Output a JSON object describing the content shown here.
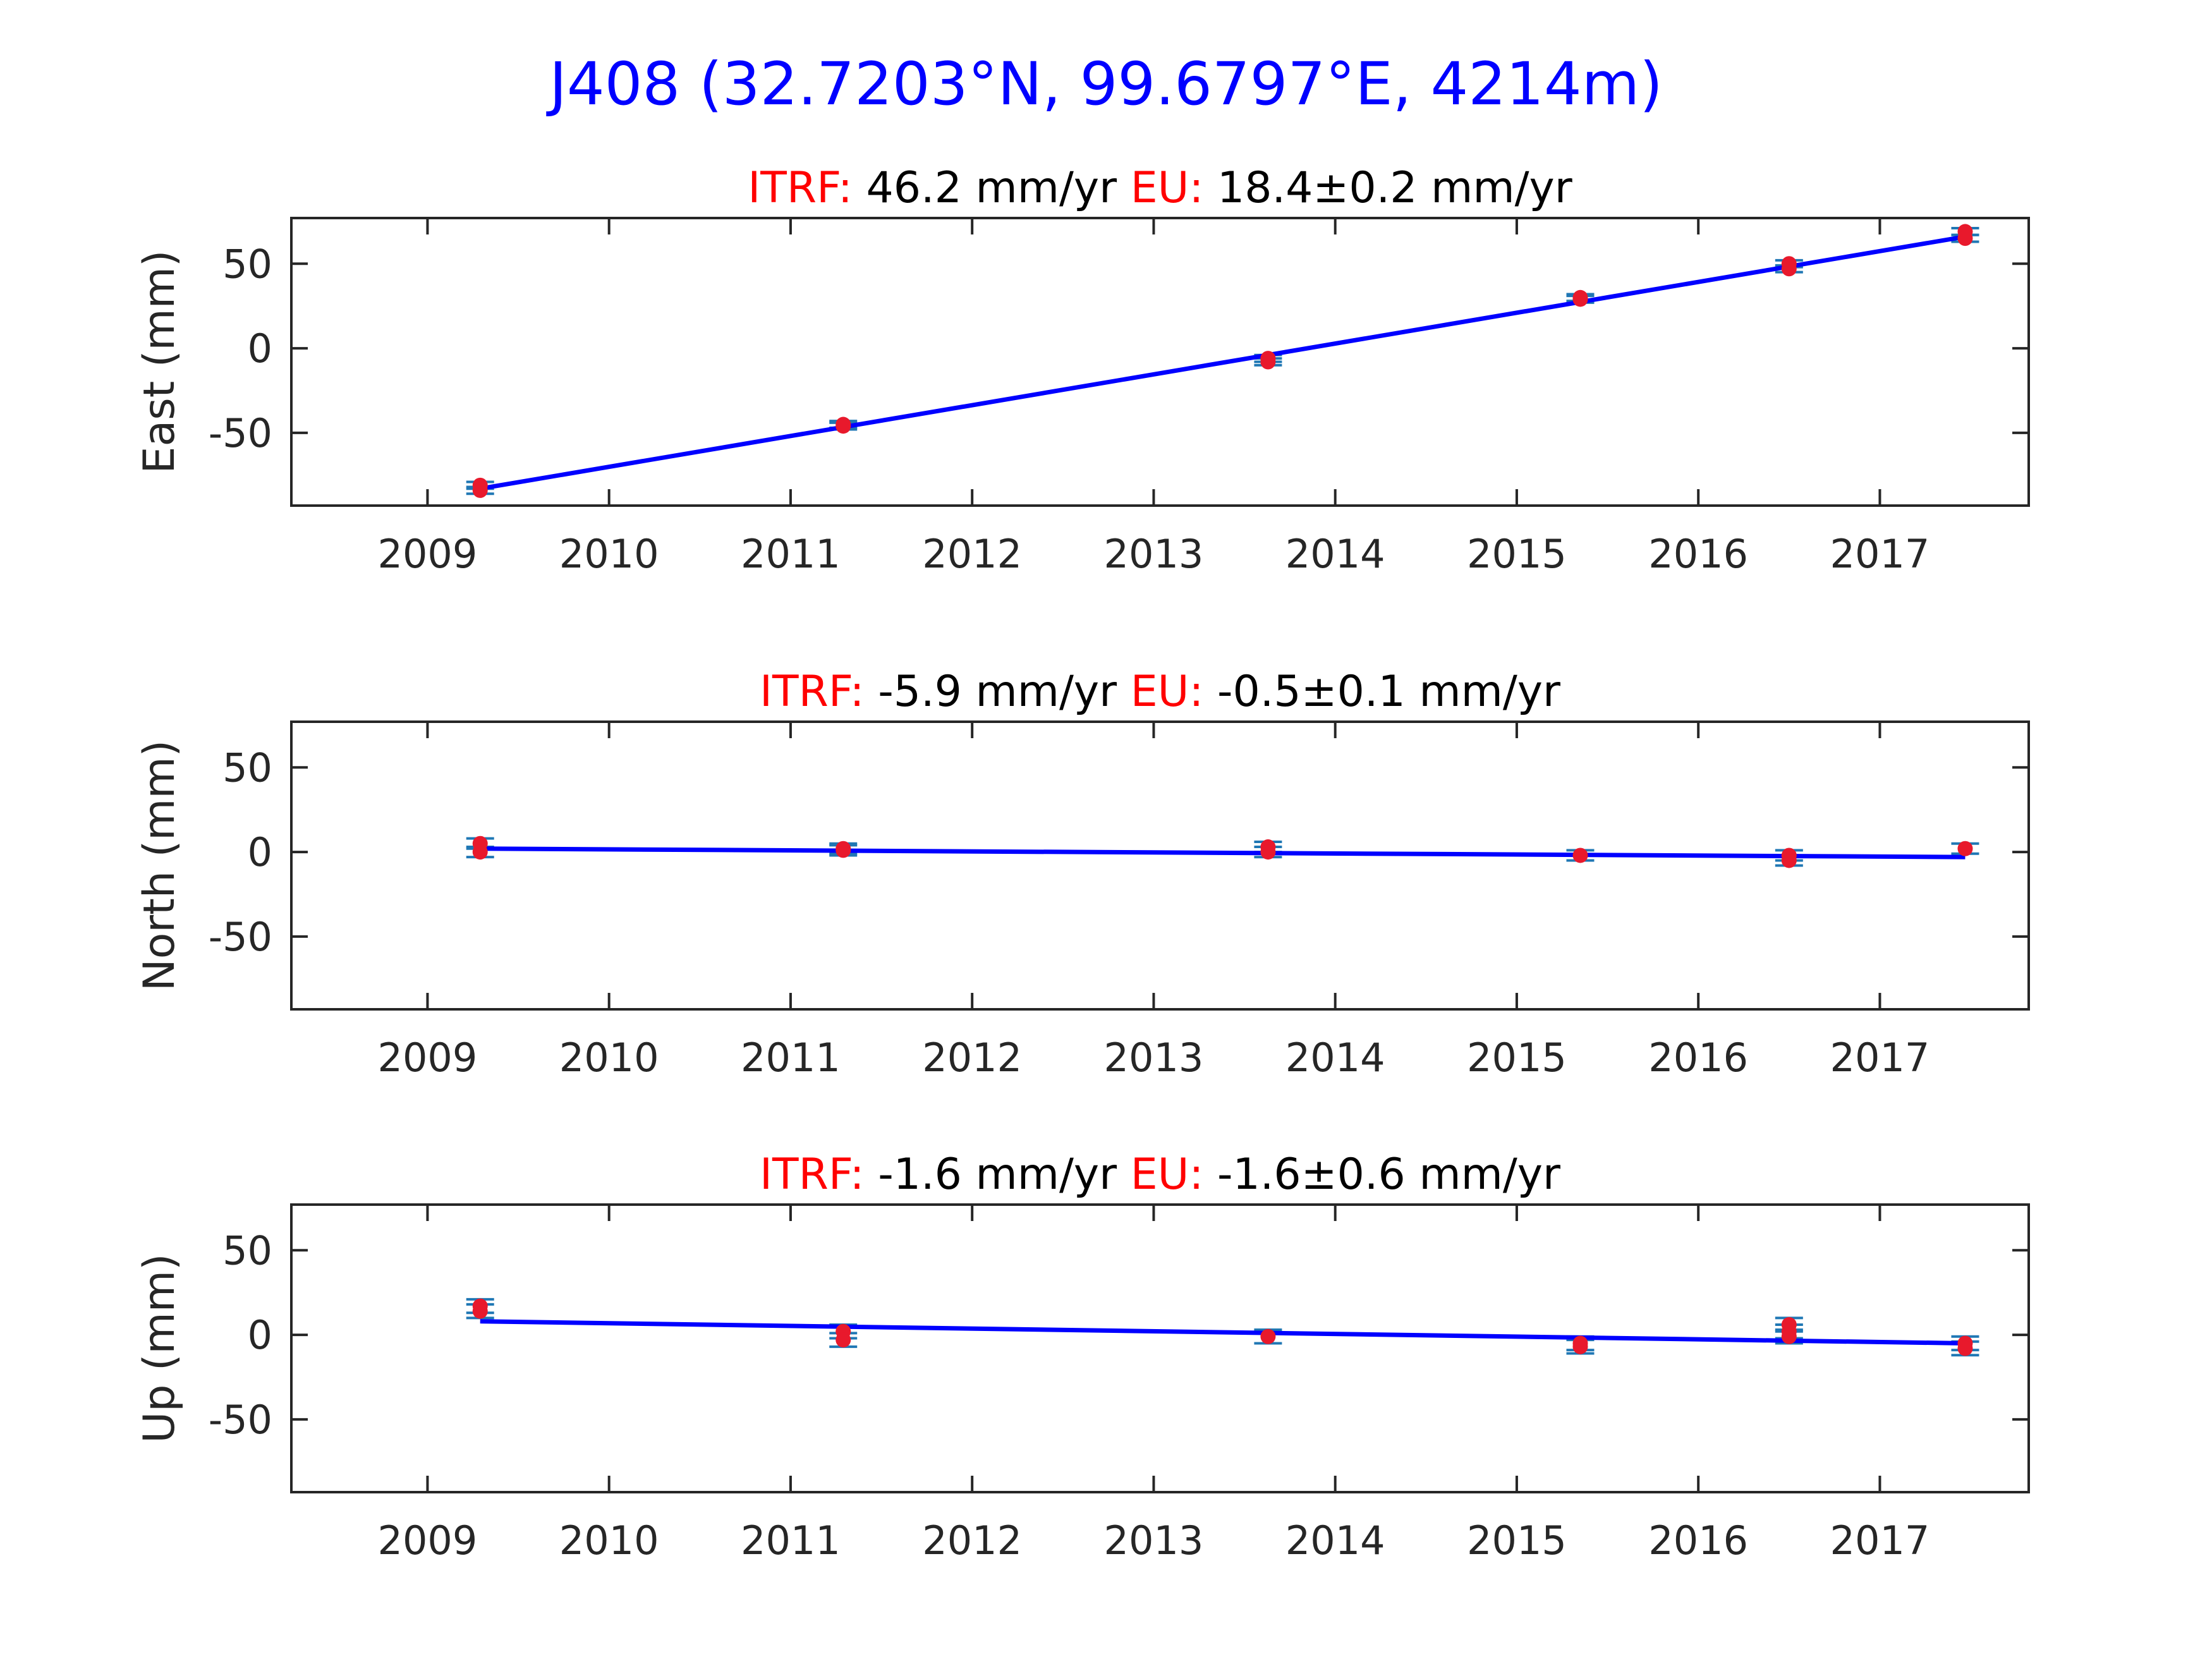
{
  "figure_title": "J408 (32.7203°N, 99.6797°E, 4214m)",
  "colors": {
    "title": "#0000ff",
    "fit_line": "#0000ff",
    "points": "#e8192c",
    "error_bars": "#1f77b4",
    "label_red": "#ff0000",
    "axis": "#262626"
  },
  "chart_data": [
    {
      "type": "scatter",
      "title": {
        "itrf_label": "ITRF:",
        "itrf_value": "46.2 mm/yr",
        "eu_label": "EU:",
        "eu_value": "18.4±0.2 mm/yr"
      },
      "ylabel": "East (mm)",
      "xlim": [
        2008.25,
        2017.82
      ],
      "ylim": [
        -93,
        77
      ],
      "xticks": [
        2009,
        2010,
        2011,
        2012,
        2013,
        2014,
        2015,
        2016,
        2017
      ],
      "yticks": [
        50,
        0,
        -50
      ],
      "grid": false,
      "points": [
        {
          "x": 2009.29,
          "y": -81
        },
        {
          "x": 2009.29,
          "y": -84
        },
        {
          "x": 2011.29,
          "y": -45
        },
        {
          "x": 2011.29,
          "y": -46
        },
        {
          "x": 2013.63,
          "y": -6
        },
        {
          "x": 2013.63,
          "y": -8
        },
        {
          "x": 2015.35,
          "y": 29
        },
        {
          "x": 2015.35,
          "y": 30
        },
        {
          "x": 2016.5,
          "y": 50
        },
        {
          "x": 2016.5,
          "y": 47
        },
        {
          "x": 2017.47,
          "y": 69
        },
        {
          "x": 2017.47,
          "y": 65
        }
      ],
      "error_bar_mm": 2,
      "fit": {
        "x": [
          2009.29,
          2017.47
        ],
        "y": [
          -83,
          66
        ]
      }
    },
    {
      "type": "scatter",
      "title": {
        "itrf_label": "ITRF:",
        "itrf_value": "-5.9 mm/yr",
        "eu_label": "EU:",
        "eu_value": "-0.5±0.1 mm/yr"
      },
      "ylabel": "North (mm)",
      "xlim": [
        2008.25,
        2017.82
      ],
      "ylim": [
        -93,
        77
      ],
      "xticks": [
        2009,
        2010,
        2011,
        2012,
        2013,
        2014,
        2015,
        2016,
        2017
      ],
      "yticks": [
        50,
        0,
        -50
      ],
      "grid": false,
      "points": [
        {
          "x": 2009.29,
          "y": 5
        },
        {
          "x": 2009.29,
          "y": 0
        },
        {
          "x": 2011.29,
          "y": 2
        },
        {
          "x": 2011.29,
          "y": 1
        },
        {
          "x": 2013.63,
          "y": 3
        },
        {
          "x": 2013.63,
          "y": 0
        },
        {
          "x": 2015.35,
          "y": -2
        },
        {
          "x": 2016.5,
          "y": -2
        },
        {
          "x": 2016.5,
          "y": -5
        },
        {
          "x": 2017.47,
          "y": 2
        }
      ],
      "error_bar_mm": 3,
      "fit": {
        "x": [
          2009.29,
          2017.47
        ],
        "y": [
          2,
          -3
        ]
      }
    },
    {
      "type": "scatter",
      "title": {
        "itrf_label": "ITRF:",
        "itrf_value": "-1.6 mm/yr",
        "eu_label": "EU:",
        "eu_value": "-1.6±0.6 mm/yr"
      },
      "ylabel": "Up (mm)",
      "xlim": [
        2008.25,
        2017.82
      ],
      "ylim": [
        -93,
        77
      ],
      "xticks": [
        2009,
        2010,
        2011,
        2012,
        2013,
        2014,
        2015,
        2016,
        2017
      ],
      "yticks": [
        50,
        0,
        -50
      ],
      "grid": false,
      "points": [
        {
          "x": 2009.29,
          "y": 17
        },
        {
          "x": 2009.29,
          "y": 14
        },
        {
          "x": 2011.29,
          "y": 2
        },
        {
          "x": 2011.29,
          "y": -3
        },
        {
          "x": 2013.63,
          "y": -1
        },
        {
          "x": 2015.35,
          "y": -5
        },
        {
          "x": 2015.35,
          "y": -7
        },
        {
          "x": 2016.5,
          "y": 6
        },
        {
          "x": 2016.5,
          "y": 2
        },
        {
          "x": 2016.5,
          "y": -1
        },
        {
          "x": 2017.47,
          "y": -5
        },
        {
          "x": 2017.47,
          "y": -8
        }
      ],
      "error_bar_mm": 4,
      "fit": {
        "x": [
          2009.29,
          2017.47
        ],
        "y": [
          8,
          -5
        ]
      }
    }
  ]
}
